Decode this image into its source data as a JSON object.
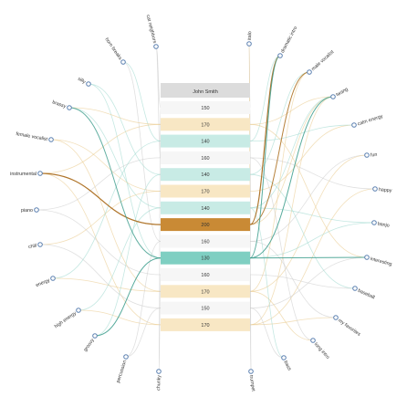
{
  "header": {
    "label": "John Smith",
    "color": "#dcdcdc"
  },
  "palette": {
    "white": "#f6f6f6",
    "peach": "#f8e7c4",
    "mint": "#c8ebe5",
    "orange": "#c98a35",
    "teal": "#7fcfc2",
    "link_orange": "#e9c98c",
    "link_teal": "#9fd8cf",
    "link_dark_orange": "#a86a1e",
    "link_dark_teal": "#3d9c8c",
    "link_gray": "#cccccc",
    "node_stroke": "#5a7fb0"
  },
  "bars": [
    {
      "value": "150",
      "style": "white"
    },
    {
      "value": "170",
      "style": "peach"
    },
    {
      "value": "140",
      "style": "mint"
    },
    {
      "value": "160",
      "style": "white"
    },
    {
      "value": "140",
      "style": "mint"
    },
    {
      "value": "170",
      "style": "peach"
    },
    {
      "value": "140",
      "style": "mint"
    },
    {
      "value": "200",
      "style": "orange"
    },
    {
      "value": "160",
      "style": "white"
    },
    {
      "value": "130",
      "style": "teal"
    },
    {
      "value": "160",
      "style": "white"
    },
    {
      "value": "170",
      "style": "peach"
    },
    {
      "value": "150",
      "style": "white"
    },
    {
      "value": "170",
      "style": "peach"
    }
  ],
  "tags_left": [
    "cat neighbors",
    "horn breaks",
    "silly",
    "brassy",
    "female vocalist",
    "instrumental",
    "piano",
    "chill",
    "energy",
    "high energy",
    "groovy",
    "percussion",
    "chunky"
  ],
  "tags_right": [
    "italo",
    "dramatic intro",
    "male vocalist",
    "twang",
    "calm energy",
    "fun",
    "happy",
    "banjo",
    "interesting",
    "baseball",
    "my favorites",
    "long intro",
    "bass",
    "trumpet"
  ]
}
